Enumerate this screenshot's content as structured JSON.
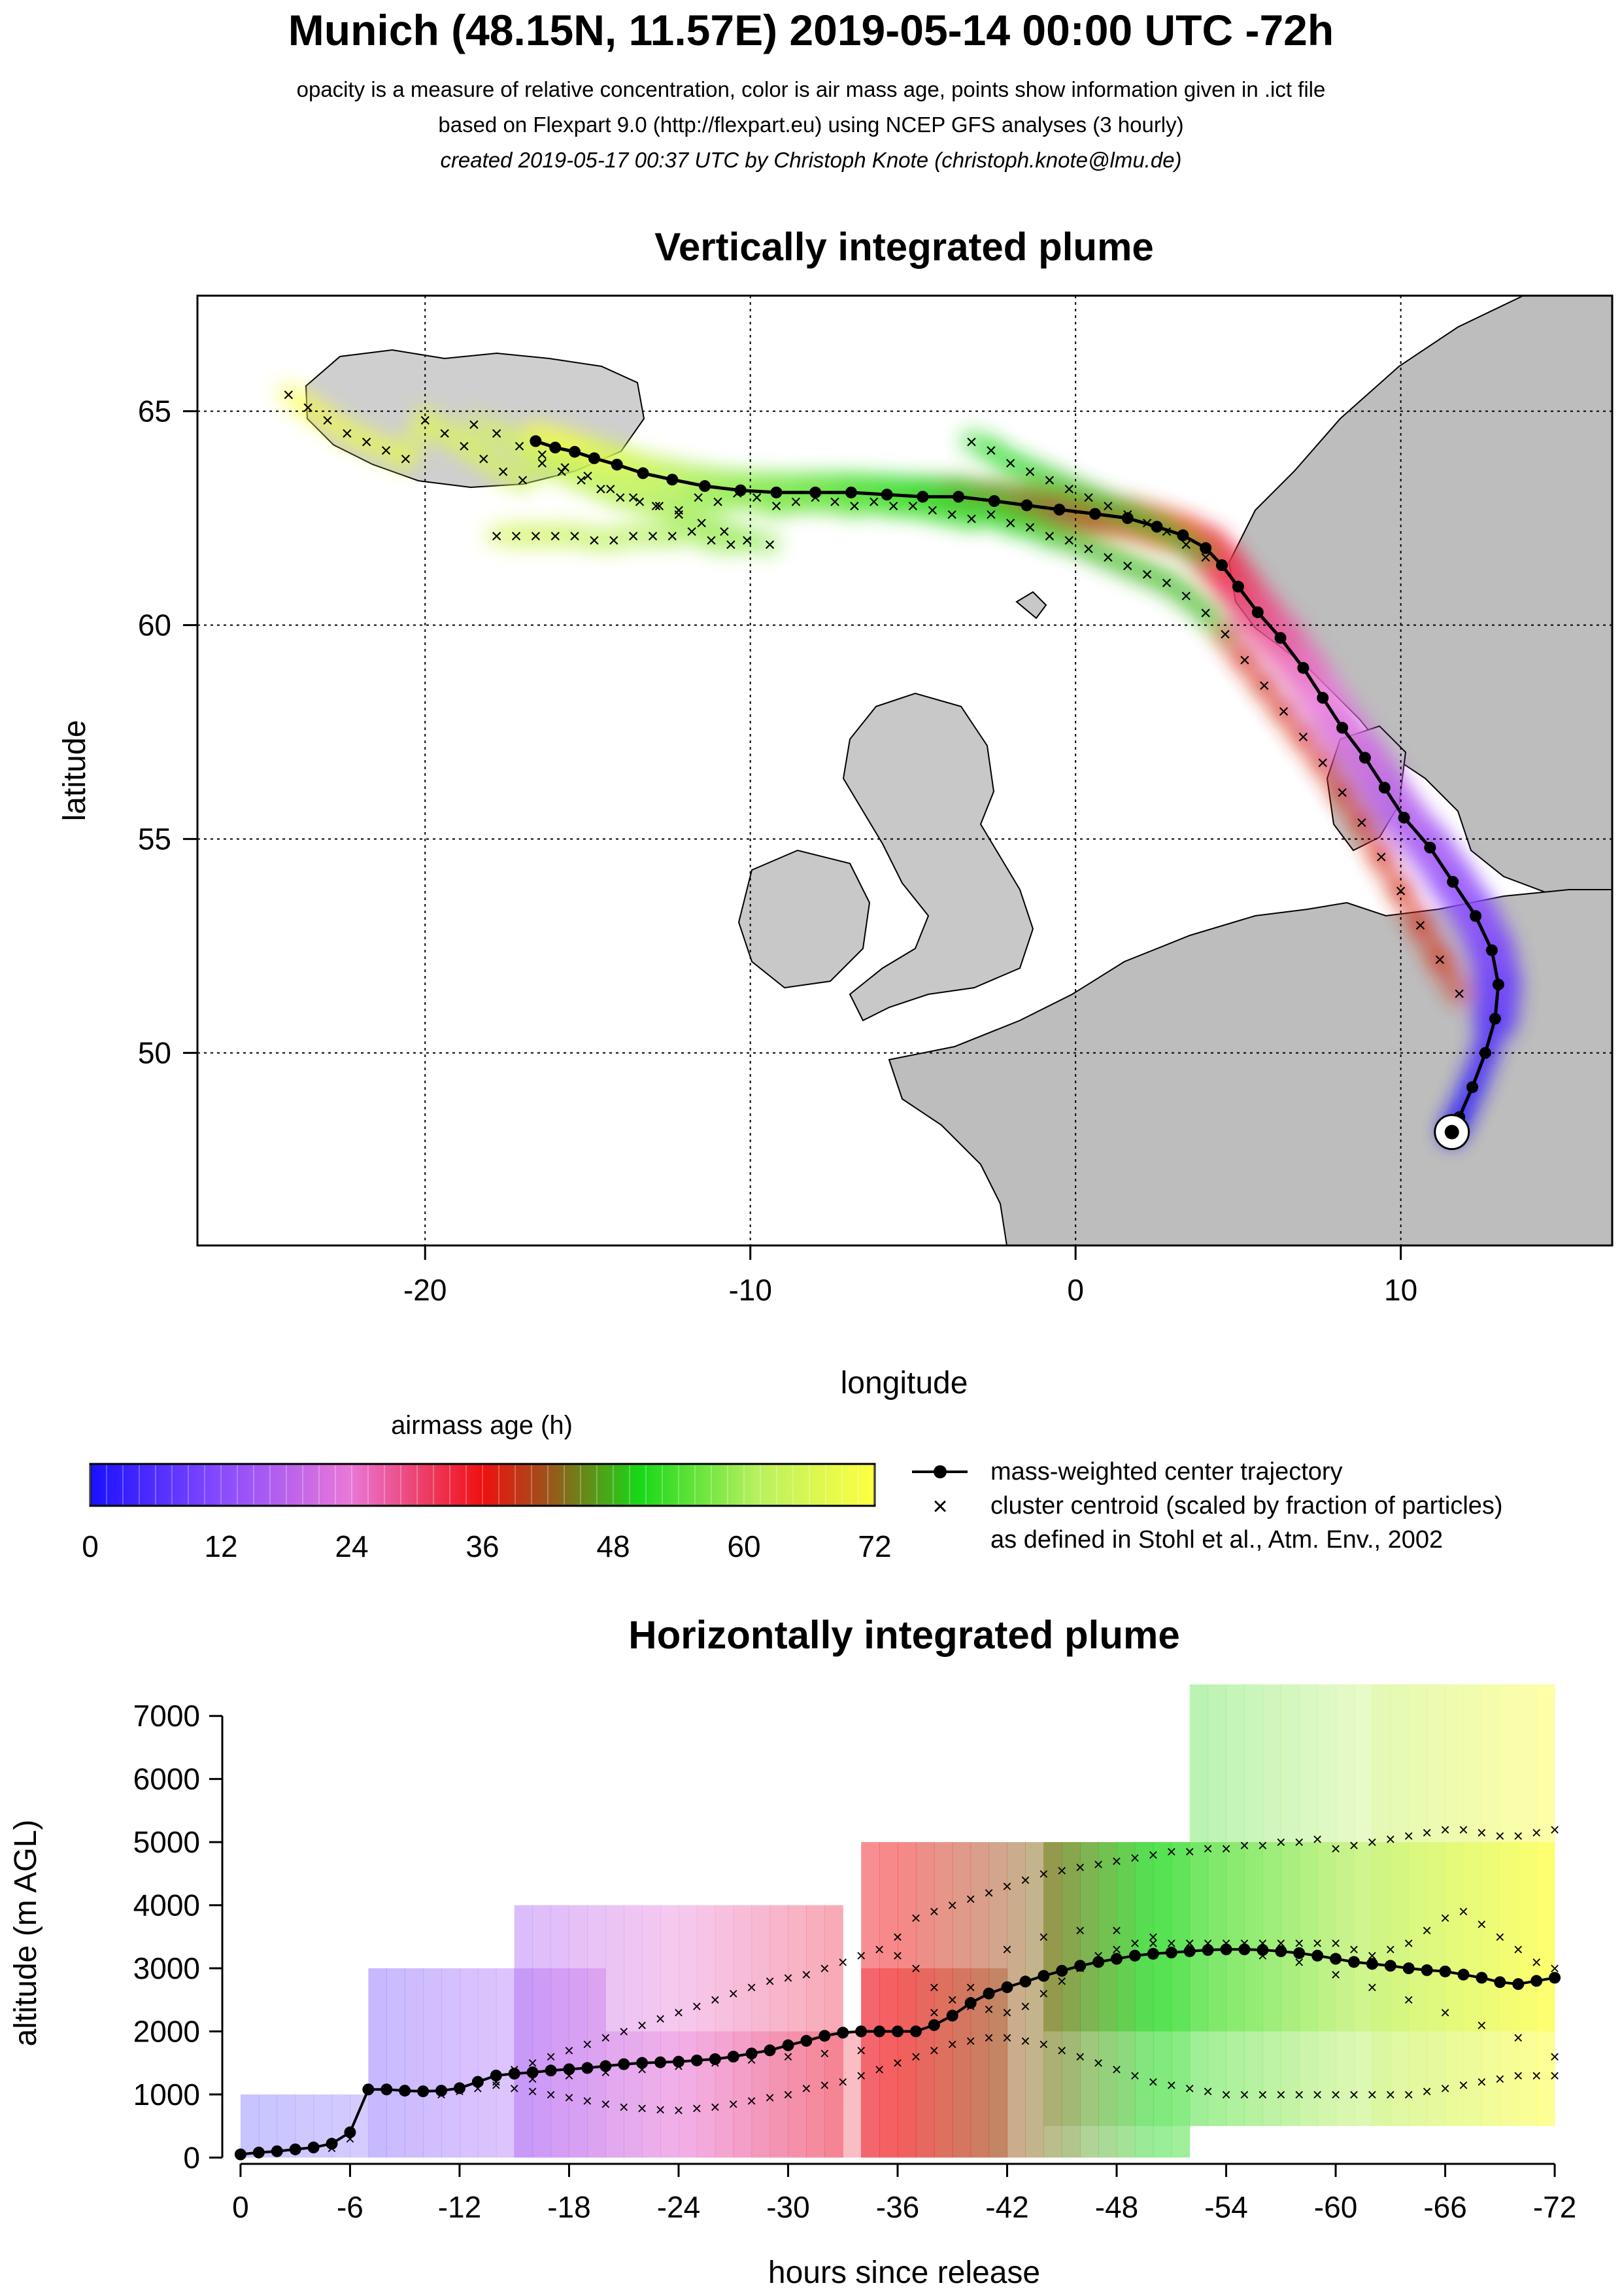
{
  "header": {
    "title": "Munich (48.15N, 11.57E) 2019-05-14 00:00 UTC -72h",
    "line1": "opacity is a measure of relative concentration, color is air mass age, points show information given in .ict file",
    "line2": "based on Flexpart 9.0 (http://flexpart.eu) using NCEP GFS analyses (3 hourly)",
    "line3": "created 2019-05-17 00:37 UTC by Christoph Knote (christoph.knote@lmu.de)"
  },
  "colors": {
    "land": "#d2d2d2",
    "coast": "#000000",
    "grid": "#000000",
    "center": "#000000"
  },
  "legend": {
    "colorbar_title": "airmass age (h)",
    "colorbar_ticks": [
      "0",
      "12",
      "24",
      "36",
      "48",
      "60",
      "72"
    ],
    "items": [
      {
        "symbol": "line-dot",
        "label": "mass-weighted center trajectory"
      },
      {
        "symbol": "cross",
        "label": "cluster centroid (scaled by fraction of particles)"
      },
      {
        "symbol": "none",
        "label": "as defined in Stohl et al., Atm. Env., 2002"
      }
    ]
  },
  "chart_data": [
    {
      "type": "scatter",
      "title": "Vertically integrated plume",
      "xlabel": "longitude",
      "ylabel": "latitude",
      "xlim": [
        -27,
        16.5
      ],
      "ylim": [
        45.5,
        67.7
      ],
      "xticks": [
        -20,
        -10,
        0,
        10
      ],
      "xtick_labels": [
        "-20",
        "-10",
        "0",
        "10"
      ],
      "yticks": [
        50,
        55,
        60,
        65
      ],
      "ytick_labels": [
        "50",
        "55",
        "60",
        "65"
      ],
      "grid": true,
      "release_point": {
        "lon": 11.57,
        "lat": 48.15
      },
      "center_trajectory": {
        "name": "mass-weighted center trajectory",
        "lon": [
          11.57,
          11.8,
          12.2,
          12.6,
          12.9,
          13.0,
          12.8,
          12.3,
          11.6,
          10.9,
          10.1,
          9.5,
          8.9,
          8.2,
          7.6,
          7.0,
          6.3,
          5.6,
          5.0,
          4.5,
          4.0,
          3.3,
          2.5,
          1.6,
          0.6,
          -0.5,
          -1.5,
          -2.5,
          -3.6,
          -4.7,
          -5.8,
          -6.9,
          -8.0,
          -9.2,
          -10.3,
          -11.4,
          -12.4,
          -13.3,
          -14.1,
          -14.8,
          -15.4,
          -16.0,
          -16.6
        ],
        "lat": [
          48.15,
          48.5,
          49.2,
          50.0,
          50.8,
          51.6,
          52.4,
          53.2,
          54.0,
          54.8,
          55.5,
          56.2,
          56.9,
          57.6,
          58.3,
          59.0,
          59.7,
          60.3,
          60.9,
          61.4,
          61.8,
          62.1,
          62.3,
          62.5,
          62.6,
          62.7,
          62.8,
          62.9,
          63.0,
          63.0,
          63.05,
          63.1,
          63.1,
          63.1,
          63.15,
          63.25,
          63.4,
          63.55,
          63.75,
          63.9,
          64.05,
          64.15,
          64.3
        ]
      },
      "cluster_centroids_lon": [
        -24.2,
        -23.6,
        -23.0,
        -22.4,
        -21.8,
        -21.2,
        -20.6,
        -20.0,
        -19.4,
        -18.8,
        -18.2,
        -17.6,
        -17.0,
        -16.4,
        -15.8,
        -15.2,
        -14.6,
        -14.0,
        -13.4,
        -12.8,
        -12.2,
        -11.6,
        -11.0,
        -10.4,
        -9.8,
        -9.2,
        -8.6,
        -8.0,
        -7.4,
        -6.8,
        -6.2,
        -5.6,
        -5.0,
        -4.4,
        -3.8,
        -3.2,
        -2.6,
        -2.0,
        -1.4,
        -0.8,
        -0.2,
        0.4,
        1.0,
        1.6,
        2.2,
        2.8,
        3.4,
        4.0,
        4.6,
        5.2,
        5.8,
        6.4,
        7.0,
        7.6,
        8.2,
        8.8,
        9.4,
        10.0,
        10.6,
        11.2,
        11.8,
        -18.5,
        -17.8,
        -17.1,
        -16.4,
        -15.7,
        -15.0,
        -14.3,
        -13.6,
        -12.9,
        -12.2,
        -11.5,
        -10.8,
        -10.1,
        -9.4,
        -3.2,
        -2.6,
        -2.0,
        -1.4,
        -0.8,
        -0.2,
        0.4,
        1.0,
        1.6,
        2.2,
        2.8,
        3.4,
        4.0,
        -17.8,
        -17.2,
        -16.6,
        -16.0,
        -15.4,
        -14.8,
        -14.2,
        -13.6,
        -13.0,
        -12.4,
        -11.8,
        -11.2,
        -10.6
      ],
      "cluster_centroids_lat": [
        65.4,
        65.1,
        64.8,
        64.5,
        64.3,
        64.1,
        63.9,
        64.8,
        64.5,
        64.2,
        63.9,
        63.6,
        63.4,
        63.8,
        63.6,
        63.4,
        63.2,
        63.0,
        62.9,
        62.8,
        62.7,
        63.0,
        62.9,
        63.1,
        63.0,
        62.8,
        62.9,
        63.0,
        62.9,
        62.8,
        62.9,
        62.8,
        62.8,
        62.7,
        62.6,
        62.5,
        62.6,
        62.4,
        62.3,
        62.1,
        62.0,
        61.8,
        61.6,
        61.4,
        61.2,
        61.0,
        60.7,
        60.3,
        59.8,
        59.2,
        58.6,
        58.0,
        57.4,
        56.8,
        56.1,
        55.4,
        54.6,
        53.8,
        53.0,
        52.2,
        51.4,
        64.7,
        64.5,
        64.2,
        64.0,
        63.7,
        63.5,
        63.2,
        63.0,
        62.8,
        62.6,
        62.4,
        62.2,
        62.0,
        61.9,
        64.3,
        64.1,
        63.8,
        63.6,
        63.4,
        63.2,
        63.0,
        62.8,
        62.6,
        62.4,
        62.2,
        61.9,
        61.6,
        62.1,
        62.1,
        62.1,
        62.1,
        62.1,
        62.0,
        62.0,
        62.1,
        62.1,
        62.1,
        62.2,
        62.0,
        61.9
      ]
    },
    {
      "type": "line",
      "title": "Horizontally integrated plume",
      "xlabel": "hours since release",
      "ylabel": "altitude (m AGL)",
      "xlim": [
        1,
        -73
      ],
      "ylim": [
        -100,
        7500
      ],
      "xticks": [
        0,
        -6,
        -12,
        -18,
        -24,
        -30,
        -36,
        -42,
        -48,
        -54,
        -60,
        -66,
        -72
      ],
      "xtick_labels": [
        "0",
        "-6",
        "-12",
        "-18",
        "-24",
        "-30",
        "-36",
        "-42",
        "-48",
        "-54",
        "-60",
        "-66",
        "-72"
      ],
      "yticks": [
        0,
        1000,
        2000,
        3000,
        4000,
        5000,
        6000,
        7000
      ],
      "ytick_labels": [
        "0",
        "1000",
        "2000",
        "3000",
        "4000",
        "5000",
        "6000",
        "7000"
      ],
      "center_trajectory": {
        "name": "mass-weighted center trajectory",
        "x": [
          0,
          -1,
          -2,
          -3,
          -4,
          -5,
          -6,
          -7,
          -8,
          -9,
          -10,
          -11,
          -12,
          -13,
          -14,
          -15,
          -16,
          -17,
          -18,
          -19,
          -20,
          -21,
          -22,
          -23,
          -24,
          -25,
          -26,
          -27,
          -28,
          -29,
          -30,
          -31,
          -32,
          -33,
          -34,
          -35,
          -36,
          -37,
          -38,
          -39,
          -40,
          -41,
          -42,
          -43,
          -44,
          -45,
          -46,
          -47,
          -48,
          -49,
          -50,
          -51,
          -52,
          -53,
          -54,
          -55,
          -56,
          -57,
          -58,
          -59,
          -60,
          -61,
          -62,
          -63,
          -64,
          -65,
          -66,
          -67,
          -68,
          -69,
          -70,
          -71,
          -72
        ],
        "y": [
          50,
          80,
          100,
          130,
          160,
          220,
          400,
          1080,
          1080,
          1060,
          1050,
          1060,
          1100,
          1200,
          1300,
          1330,
          1350,
          1380,
          1400,
          1420,
          1450,
          1480,
          1500,
          1510,
          1520,
          1540,
          1560,
          1600,
          1650,
          1700,
          1780,
          1850,
          1930,
          1980,
          2000,
          2000,
          2000,
          2000,
          2100,
          2250,
          2450,
          2600,
          2700,
          2790,
          2880,
          2960,
          3040,
          3100,
          3150,
          3200,
          3230,
          3250,
          3270,
          3290,
          3300,
          3300,
          3290,
          3270,
          3240,
          3200,
          3150,
          3100,
          3070,
          3040,
          3000,
          2970,
          2950,
          2900,
          2850,
          2780,
          2750,
          2800,
          2850
        ]
      },
      "cluster_centroids_x": [
        -5,
        -6,
        -7,
        -8,
        -9,
        -10,
        -11,
        -12,
        -13,
        -14,
        -15,
        -16,
        -17,
        -18,
        -19,
        -20,
        -21,
        -22,
        -23,
        -24,
        -25,
        -26,
        -27,
        -28,
        -29,
        -30,
        -31,
        -32,
        -33,
        -34,
        -35,
        -36,
        -37,
        -38,
        -39,
        -40,
        -41,
        -42,
        -43,
        -44,
        -45,
        -46,
        -47,
        -48,
        -49,
        -50,
        -51,
        -52,
        -53,
        -54,
        -55,
        -56,
        -57,
        -58,
        -59,
        -60,
        -61,
        -62,
        -63,
        -64,
        -65,
        -66,
        -67,
        -68,
        -69,
        -70,
        -71,
        -72,
        -15,
        -16,
        -17,
        -18,
        -19,
        -20,
        -21,
        -22,
        -23,
        -24,
        -25,
        -26,
        -27,
        -28,
        -29,
        -30,
        -31,
        -32,
        -33,
        -34,
        -35,
        -36,
        -37,
        -38,
        -39,
        -40,
        -41,
        -42,
        -43,
        -44,
        -45,
        -46,
        -47,
        -48,
        -49,
        -50,
        -51,
        -52,
        -53,
        -54,
        -55,
        -56,
        -57,
        -58,
        -59,
        -60,
        -61,
        -62,
        -63,
        -64,
        -65,
        -66,
        -67,
        -68,
        -69,
        -70,
        -71,
        -72,
        -14,
        -16,
        -18,
        -20,
        -22,
        -24,
        -26,
        -28,
        -30,
        -32,
        -34,
        -36,
        -38,
        -40,
        -42,
        -44,
        -46,
        -48,
        -50,
        -52,
        -54,
        -56,
        -58,
        -60,
        -62,
        -64,
        -66,
        -68,
        -70,
        -72,
        -36,
        -37,
        -38,
        -39,
        -40,
        -41,
        -42,
        -43,
        -44,
        -45,
        -46,
        -47,
        -48,
        -49,
        -50,
        -51,
        -52,
        -53,
        -54,
        -55,
        -56,
        -57,
        -58,
        -59,
        -60,
        -61,
        -62,
        -63,
        -64,
        -65,
        -66,
        -67,
        -68,
        -69,
        -70,
        -71,
        -72
      ],
      "cluster_centroids_y": [
        150,
        300,
        1100,
        1100,
        1050,
        1050,
        1000,
        1050,
        1100,
        1150,
        1100,
        1050,
        1000,
        950,
        900,
        850,
        800,
        780,
        760,
        750,
        780,
        800,
        850,
        900,
        950,
        1000,
        1100,
        1150,
        1200,
        1300,
        1400,
        1500,
        1600,
        1700,
        1800,
        1850,
        1900,
        1900,
        1850,
        1800,
        1700,
        1600,
        1500,
        1400,
        1300,
        1200,
        1150,
        1100,
        1050,
        1000,
        1000,
        1000,
        1000,
        1000,
        1000,
        1000,
        1000,
        1000,
        1000,
        1000,
        1050,
        1100,
        1150,
        1200,
        1250,
        1300,
        1300,
        1300,
        1400,
        1500,
        1600,
        1700,
        1800,
        1900,
        2000,
        2100,
        2200,
        2300,
        2400,
        2500,
        2600,
        2700,
        2800,
        2850,
        2900,
        3000,
        3100,
        3200,
        3300,
        3200,
        3000,
        2700,
        2500,
        2400,
        2350,
        2300,
        2400,
        2600,
        2800,
        3000,
        3200,
        3300,
        3400,
        3400,
        3400,
        3400,
        3400,
        3400,
        3400,
        3400,
        3400,
        3400,
        3400,
        3400,
        3300,
        3200,
        3300,
        3400,
        3600,
        3800,
        3900,
        3700,
        3500,
        3300,
        3100,
        3000,
        1200,
        1250,
        1300,
        1350,
        1400,
        1450,
        1500,
        1550,
        1600,
        1650,
        1700,
        2000,
        2300,
        2700,
        3300,
        3500,
        3600,
        3600,
        3500,
        3400,
        3300,
        3200,
        3100,
        2900,
        2700,
        2500,
        2300,
        2100,
        1900,
        1600,
        3500,
        3800,
        3900,
        4000,
        4100,
        4200,
        4300,
        4400,
        4500,
        4550,
        4600,
        4650,
        4700,
        4750,
        4800,
        4850,
        4850,
        4900,
        4900,
        4950,
        4950,
        5000,
        5000,
        5050,
        4900,
        4950,
        5000,
        5050,
        5100,
        5150,
        5200,
        5200,
        5150,
        5100,
        5100,
        5150,
        5200
      ]
    }
  ]
}
